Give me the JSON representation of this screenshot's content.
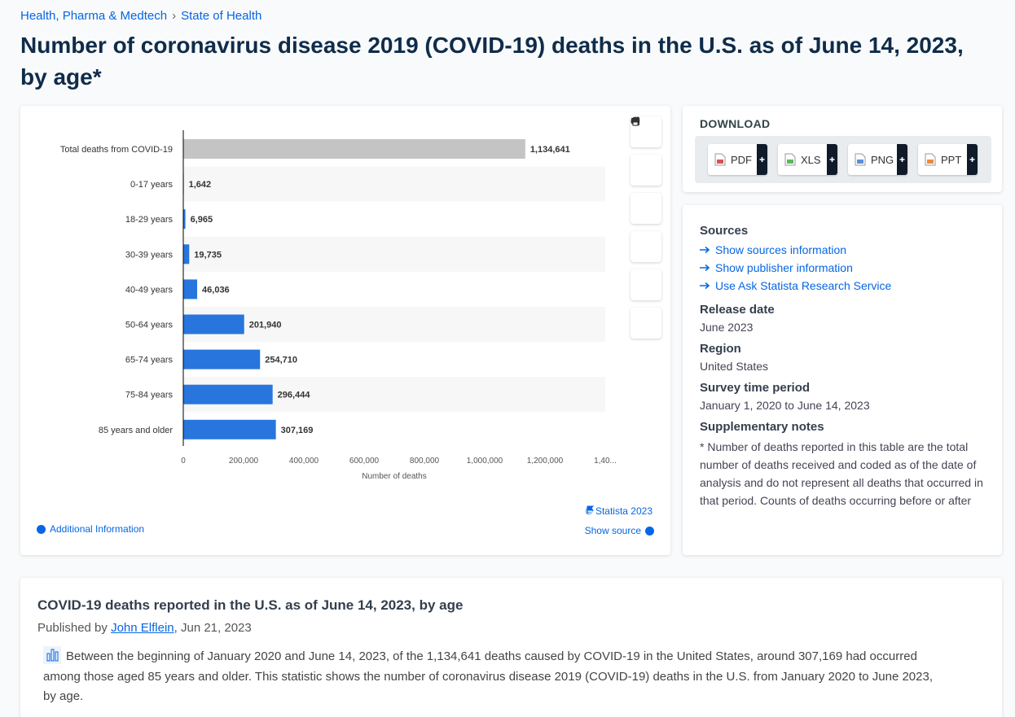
{
  "breadcrumb": [
    "Health, Pharma & Medtech",
    "State of Health"
  ],
  "title": "Number of coronavirus disease 2019 (COVID-19) deaths in the U.S. as of June 14, 2023, by age*",
  "chart_data": {
    "type": "bar",
    "orientation": "horizontal",
    "categories": [
      "Total deaths from COVID-19",
      "0-17 years",
      "18-29 years",
      "30-39 years",
      "40-49 years",
      "50-64 years",
      "65-74 years",
      "75-84 years",
      "85 years and older"
    ],
    "values": [
      1134641,
      1642,
      6965,
      19735,
      46036,
      201940,
      254710,
      296444,
      307169
    ],
    "value_labels": [
      "1,134,641",
      "1,642",
      "6,965",
      "19,735",
      "46,036",
      "201,940",
      "254,710",
      "296,444",
      "307,169"
    ],
    "colors": [
      "#c4c4c4",
      "#2876dd",
      "#2876dd",
      "#2876dd",
      "#2876dd",
      "#2876dd",
      "#2876dd",
      "#2876dd",
      "#2876dd"
    ],
    "xlim": [
      0,
      1400000
    ],
    "xticks": [
      0,
      {
        "value": 200000,
        "label": "200,000"
      },
      {
        "value": 400000,
        "label": "400,000"
      },
      {
        "value": 600000,
        "label": "600,000"
      },
      {
        "value": 800000,
        "label": "800,000"
      },
      {
        "value": 1000000,
        "label": "1,000,000"
      },
      {
        "value": 1200000,
        "label": "1,200,000"
      },
      {
        "value": 1400000,
        "label": "1,40..."
      }
    ],
    "xlabel": "Number of deaths",
    "grid": false
  },
  "chart_footer": {
    "copyright": "© Statista 2023",
    "show_source": "Show source",
    "additional_info": "Additional Information"
  },
  "download": {
    "heading": "DOWNLOAD",
    "formats": [
      "PDF",
      "XLS",
      "PNG",
      "PPT"
    ]
  },
  "details": {
    "sources_heading": "Sources",
    "source_links": [
      "Show sources information",
      "Show publisher information",
      "Use Ask Statista Research Service"
    ],
    "sections": [
      {
        "heading": "Release date",
        "text": "June 2023"
      },
      {
        "heading": "Region",
        "text": "United States"
      },
      {
        "heading": "Survey time period",
        "text": "January 1, 2020 to June 14, 2023"
      },
      {
        "heading": "Supplementary notes",
        "text": "* Number of deaths reported in this table are the total number of deaths received and coded as of the date of analysis and do not represent all deaths that occurred in that period. Counts of deaths occurring before or after the reporting period are not included"
      }
    ]
  },
  "description": {
    "title": "COVID-19 deaths reported in the U.S. as of June 14, 2023, by age",
    "published_by": "Published by",
    "author": "John Elflein",
    "date": ", Jun 21, 2023",
    "text": "Between the beginning of January 2020 and June 14, 2023, of the 1,134,641 deaths caused by COVID-19 in the United States, around 307,169 had occurred among those aged 85 years and older. This statistic shows the number of coronavirus disease 2019 (COVID-19) deaths in the U.S. from January 2020 to June 2023, by age."
  }
}
